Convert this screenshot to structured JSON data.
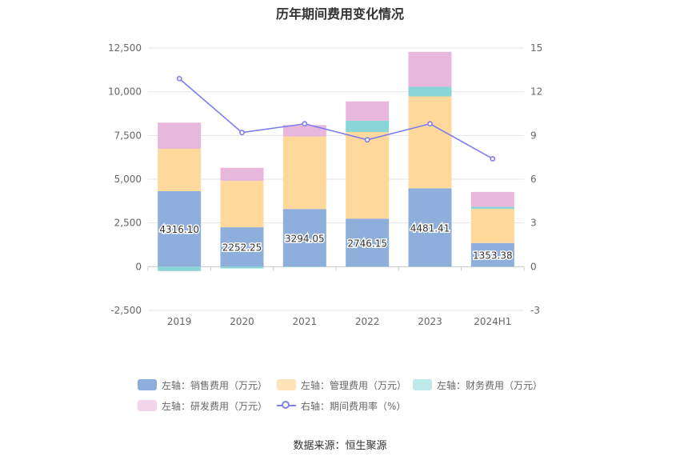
{
  "chart_data": {
    "type": "bar",
    "title": "历年期间费用变化情况",
    "categories": [
      "2019",
      "2020",
      "2021",
      "2022",
      "2023",
      "2024H1"
    ],
    "left_axis": {
      "ticks": [
        "12,500",
        "10,000",
        "7,500",
        "5,000",
        "2,500",
        "0",
        "-2,500"
      ],
      "ylim": [
        -2500,
        12500
      ]
    },
    "right_axis": {
      "ticks": [
        "15",
        "12",
        "9",
        "6",
        "3",
        "0",
        "-3"
      ],
      "ylim": [
        -3,
        15
      ]
    },
    "stacked": true,
    "series": [
      {
        "name": "左轴：销售费用（万元）",
        "color": "#8eaedb",
        "values": [
          4316.1,
          2252.25,
          3294.05,
          2746.15,
          4481.41,
          1353.38
        ],
        "labels": [
          "4316.10",
          "2252.25",
          "3294.05",
          "2746.15",
          "4481.41",
          "1353.38"
        ]
      },
      {
        "name": "左轴：管理费用（万元）",
        "color": "#ffd99b",
        "values": [
          2420,
          2650,
          4150,
          4950,
          5250,
          1950
        ]
      },
      {
        "name": "左轴：财务费用（万元）",
        "color": "#89d6d8",
        "values": [
          -250,
          -100,
          -20,
          650,
          550,
          120
        ]
      },
      {
        "name": "左轴：研发费用（万元）",
        "color": "#e8b8dc",
        "values": [
          1500,
          750,
          650,
          1100,
          2000,
          850
        ]
      }
    ],
    "line_series": {
      "name": "右轴：期间费用率（%）",
      "color": "#7d7def",
      "values": [
        12.9,
        9.2,
        9.8,
        8.7,
        9.8,
        7.4
      ]
    },
    "grid": true,
    "legend_position": "bottom"
  },
  "legend": [
    {
      "label": "左轴：销售费用（万元）",
      "color": "#8eaedb"
    },
    {
      "label": "左轴：管理费用（万元）",
      "color": "#ffe4b8"
    },
    {
      "label": "左轴：财务费用（万元）",
      "color": "#bfe8ea"
    },
    {
      "label": "左轴：研发费用（万元）",
      "color": "#f3d6eb"
    },
    {
      "label": "右轴：期间费用率（%）",
      "color": "#8080ee"
    }
  ],
  "source": "数据来源：恒生聚源"
}
